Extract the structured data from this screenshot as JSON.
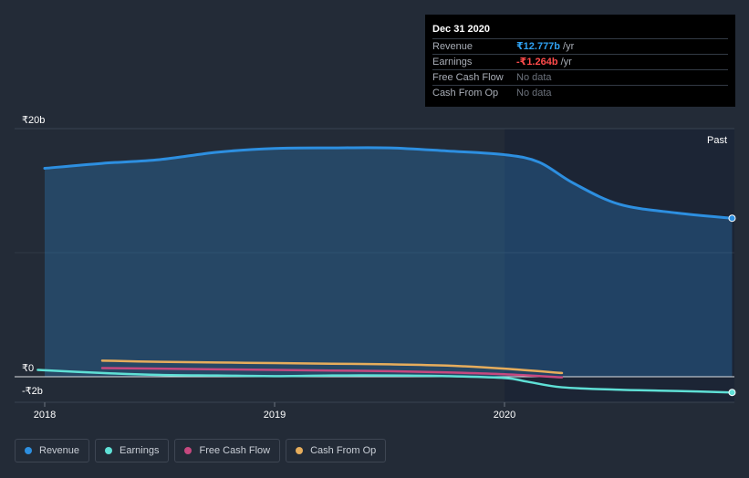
{
  "tooltip": {
    "date": "Dec 31 2020",
    "rows": [
      {
        "label": "Revenue",
        "value": "₹12.777b",
        "unit": "/yr",
        "color": "#2fa0f0"
      },
      {
        "label": "Earnings",
        "value": "-₹1.264b",
        "unit": "/yr",
        "color": "#ff4b4b"
      },
      {
        "label": "Free Cash Flow",
        "value": "No data",
        "unit": "",
        "color": "#6c727c"
      },
      {
        "label": "Cash From Op",
        "value": "No data",
        "unit": "",
        "color": "#6c727c"
      }
    ]
  },
  "past_label": "Past",
  "legend": [
    {
      "label": "Revenue",
      "color": "#2d8fe0"
    },
    {
      "label": "Earnings",
      "color": "#5fe0d6"
    },
    {
      "label": "Free Cash Flow",
      "color": "#c6487f"
    },
    {
      "label": "Cash From Op",
      "color": "#e6ad5c"
    }
  ],
  "chart_data": {
    "type": "area",
    "title": "",
    "xlabel": "",
    "ylabel": "",
    "xlim": [
      2017.97,
      2020.99
    ],
    "ylim": [
      -2,
      20
    ],
    "y_ticks": [
      {
        "value": 20,
        "label": "₹20b"
      },
      {
        "value": 0,
        "label": "₹0"
      },
      {
        "value": -2,
        "label": "-₹2b"
      }
    ],
    "x_ticks": [
      {
        "value": 2018,
        "label": "2018"
      },
      {
        "value": 2019,
        "label": "2019"
      },
      {
        "value": 2020,
        "label": "2020"
      }
    ],
    "highlight_from": 2020.0,
    "series": [
      {
        "name": "Revenue",
        "color": "#2d8fe0",
        "fill": true,
        "x": [
          2018.0,
          2018.25,
          2018.5,
          2018.75,
          2019.0,
          2019.25,
          2019.5,
          2019.75,
          2020.0,
          2020.15,
          2020.3,
          2020.5,
          2020.75,
          2020.99
        ],
        "y": [
          16.8,
          17.2,
          17.5,
          18.1,
          18.4,
          18.45,
          18.45,
          18.2,
          17.9,
          17.3,
          15.6,
          13.9,
          13.2,
          12.777
        ]
      },
      {
        "name": "Earnings",
        "color": "#5fe0d6",
        "fill": false,
        "x": [
          2017.97,
          2018.25,
          2018.5,
          2018.75,
          2019.0,
          2019.25,
          2019.5,
          2019.75,
          2020.0,
          2020.1,
          2020.25,
          2020.5,
          2020.75,
          2020.99
        ],
        "y": [
          0.55,
          0.3,
          0.15,
          0.1,
          0.05,
          0.1,
          0.1,
          0.05,
          -0.1,
          -0.4,
          -0.85,
          -1.05,
          -1.15,
          -1.264
        ]
      },
      {
        "name": "Free Cash Flow",
        "color": "#c6487f",
        "fill": false,
        "x": [
          2018.25,
          2018.5,
          2018.75,
          2019.0,
          2019.25,
          2019.5,
          2019.75,
          2020.0,
          2020.25
        ],
        "y": [
          0.7,
          0.65,
          0.6,
          0.55,
          0.5,
          0.45,
          0.35,
          0.2,
          -0.05
        ]
      },
      {
        "name": "Cash From Op",
        "color": "#e6ad5c",
        "fill": false,
        "x": [
          2018.25,
          2018.5,
          2018.75,
          2019.0,
          2019.25,
          2019.5,
          2019.75,
          2020.0,
          2020.25
        ],
        "y": [
          1.3,
          1.2,
          1.15,
          1.1,
          1.05,
          1.0,
          0.9,
          0.65,
          0.3
        ]
      }
    ]
  }
}
